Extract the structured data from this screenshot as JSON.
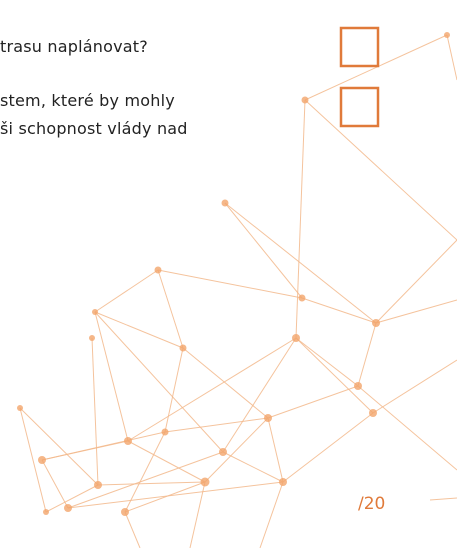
{
  "text_lines": [
    "trasu naplánovat?",
    "stem, které by mohly",
    "ši schopnost vlády nad"
  ],
  "page_number": "/20"
}
